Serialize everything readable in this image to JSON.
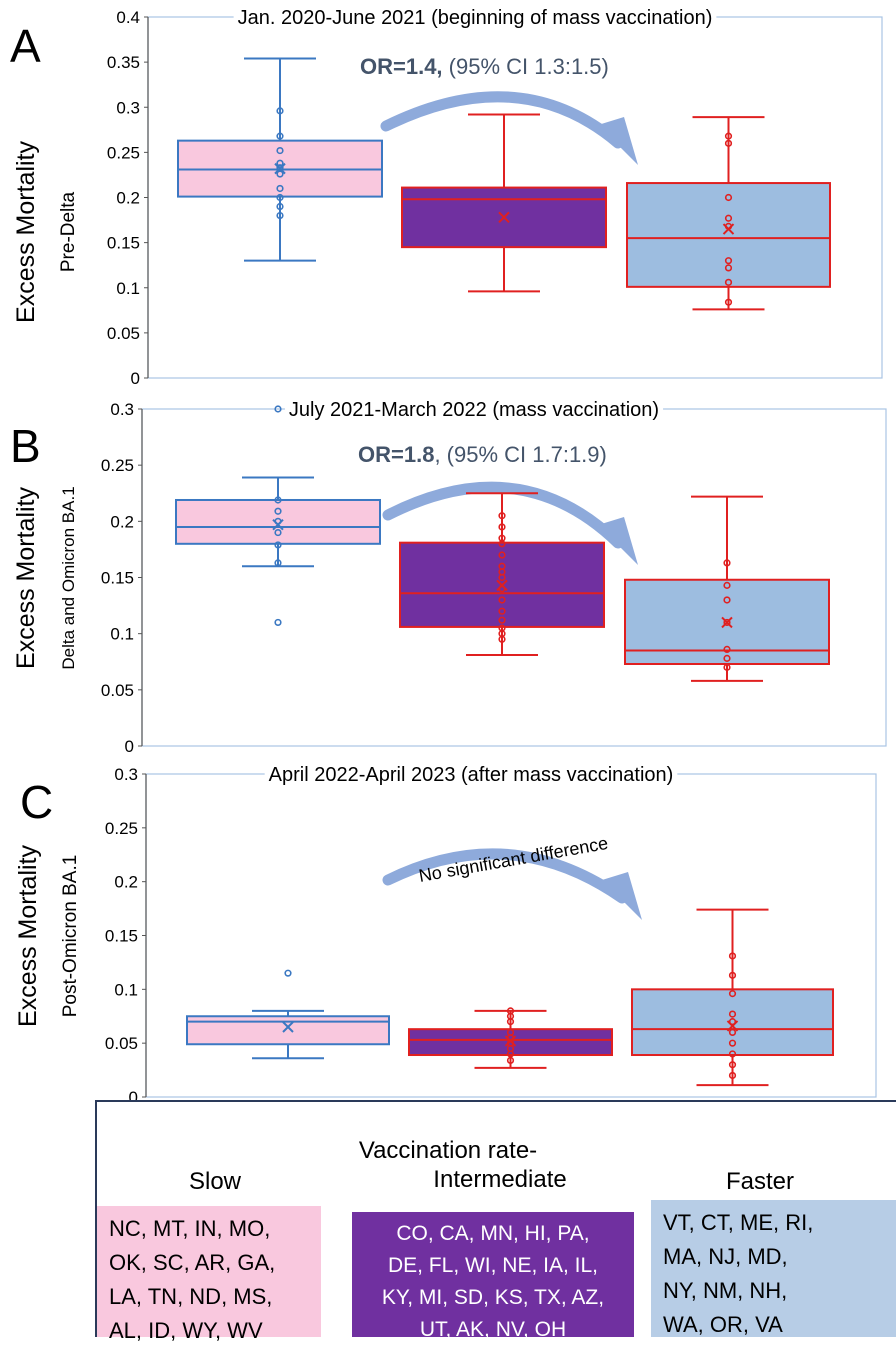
{
  "colors": {
    "slow_fill": "#f9c8de",
    "slow_stroke": "#3b78c2",
    "intermediate_fill": "#7030a0",
    "intermediate_stroke": "#e02020",
    "faster_fill": "#9dbde0",
    "faster_stroke": "#e02020",
    "arrow": "#8eaadb",
    "or_text": "#44546a",
    "frame": "#a9c4e4"
  },
  "chart_data": [
    {
      "type": "box",
      "panel_letter": "A",
      "title": "Jan. 2020-June 2021 (beginning of mass vaccination)",
      "ylabel": "Excess Mortality",
      "ylabel2": "Pre-Delta",
      "ylim": [
        0,
        0.4
      ],
      "yticks": [
        "0",
        "0.05",
        "0.1",
        "0.15",
        "0.2",
        "0.25",
        "0.3",
        "0.35",
        "0.4"
      ],
      "or_bold": "OR=1.4,",
      "or_ci": " (95% CI 1.3:1.5)",
      "groups": [
        {
          "group": "Slow",
          "min": 0.13,
          "q1": 0.201,
          "median": 0.231,
          "q3": 0.263,
          "max": 0.354,
          "mean": 0.232,
          "points": [
            0.18,
            0.19,
            0.2,
            0.21,
            0.226,
            0.233,
            0.238,
            0.252,
            0.268,
            0.296
          ]
        },
        {
          "group": "Intermediate",
          "min": 0.096,
          "q1": 0.145,
          "median": 0.198,
          "q3": 0.211,
          "max": 0.292,
          "mean": 0.178,
          "points": []
        },
        {
          "group": "Faster",
          "min": 0.076,
          "q1": 0.101,
          "median": 0.155,
          "q3": 0.216,
          "max": 0.289,
          "mean": 0.165,
          "points": [
            0.084,
            0.106,
            0.122,
            0.13,
            0.168,
            0.177,
            0.2,
            0.26,
            0.268
          ]
        }
      ]
    },
    {
      "type": "box",
      "panel_letter": "B",
      "title": "July 2021-March 2022 (mass vaccination)",
      "ylabel": "Excess Mortality",
      "ylabel2": "Delta and Omicron BA.1",
      "ylim": [
        0,
        0.3
      ],
      "yticks": [
        "0",
        "0.05",
        "0.1",
        "0.15",
        "0.2",
        "0.25",
        "0.3"
      ],
      "or_bold": "OR=1.8",
      "or_ci": ", (95% CI 1.7:1.9)",
      "groups": [
        {
          "group": "Slow",
          "min": 0.16,
          "q1": 0.18,
          "median": 0.195,
          "q3": 0.219,
          "max": 0.239,
          "mean": 0.197,
          "points": [
            0.11,
            0.163,
            0.179,
            0.19,
            0.2,
            0.209,
            0.219,
            0.3
          ]
        },
        {
          "group": "Intermediate",
          "min": 0.081,
          "q1": 0.106,
          "median": 0.136,
          "q3": 0.181,
          "max": 0.225,
          "mean": 0.143,
          "points": [
            0.095,
            0.1,
            0.105,
            0.112,
            0.12,
            0.13,
            0.14,
            0.15,
            0.155,
            0.16,
            0.17,
            0.18,
            0.185,
            0.195,
            0.205
          ]
        },
        {
          "group": "Faster",
          "min": 0.058,
          "q1": 0.073,
          "median": 0.085,
          "q3": 0.148,
          "max": 0.222,
          "mean": 0.11,
          "points": [
            0.07,
            0.078,
            0.086,
            0.11,
            0.13,
            0.143,
            0.163
          ]
        }
      ]
    },
    {
      "type": "box",
      "panel_letter": "C",
      "title": "April 2022-April 2023 (after mass vaccination)",
      "ylabel": "Excess Mortality",
      "ylabel2": "Post-Omicron BA.1",
      "ylim": [
        0,
        0.3
      ],
      "yticks": [
        "0",
        "0.05",
        "0.1",
        "0.15",
        "0.2",
        "0.25",
        "0.3"
      ],
      "note": "No significant difference",
      "groups": [
        {
          "group": "Slow",
          "min": 0.036,
          "q1": 0.049,
          "median": 0.07,
          "q3": 0.075,
          "max": 0.08,
          "mean": 0.065,
          "points": [
            0.115
          ]
        },
        {
          "group": "Intermediate",
          "min": 0.027,
          "q1": 0.039,
          "median": 0.053,
          "q3": 0.063,
          "max": 0.08,
          "mean": 0.052,
          "points": [
            0.034,
            0.04,
            0.045,
            0.05,
            0.055,
            0.06,
            0.07,
            0.075,
            0.08
          ]
        },
        {
          "group": "Faster",
          "min": 0.011,
          "q1": 0.039,
          "median": 0.063,
          "q3": 0.1,
          "max": 0.174,
          "mean": 0.066,
          "points": [
            0.02,
            0.03,
            0.04,
            0.05,
            0.06,
            0.07,
            0.077,
            0.096,
            0.113,
            0.131
          ]
        }
      ]
    }
  ],
  "legend": {
    "title_line1": "Vaccination rate-",
    "slow": {
      "label": "Slow",
      "states": [
        "NC, MT, IN, MO,",
        "OK, SC, AR, GA,",
        "LA, TN, ND, MS,",
        "AL, ID, WY, WV"
      ]
    },
    "intermediate": {
      "label": "Intermediate",
      "states": [
        "CO, CA, MN, HI, PA,",
        "DE, FL, WI, NE, IA, IL,",
        "KY, MI, SD, KS, TX, AZ,",
        "UT, AK, NV, OH"
      ]
    },
    "faster": {
      "label": "Faster",
      "states": [
        "VT, CT, ME, RI,",
        "MA, NJ, MD,",
        "NY, NM, NH,",
        "WA, OR, VA"
      ]
    }
  }
}
